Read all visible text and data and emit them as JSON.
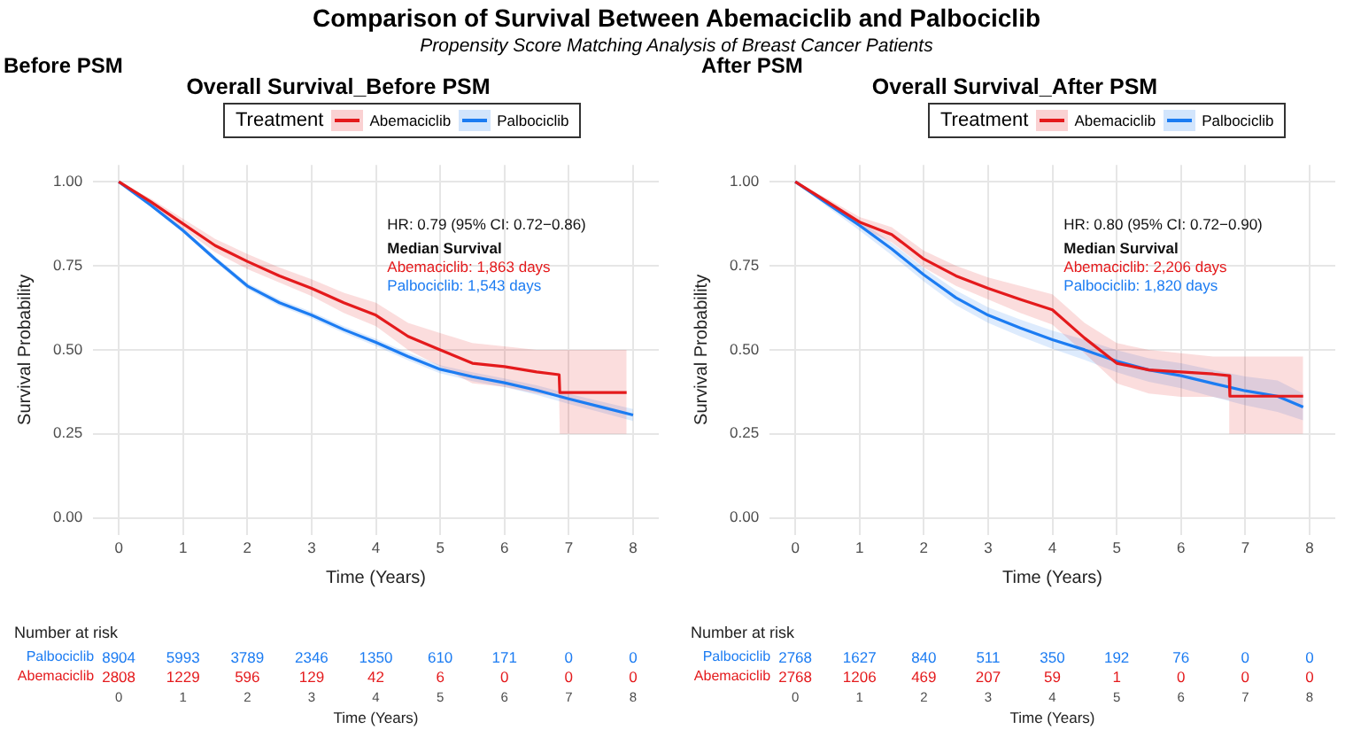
{
  "chart_data": [
    {
      "type": "line",
      "title": "Overall Survival_Before PSM",
      "subtitle": "Before PSM",
      "xlabel": "Time (Years)",
      "ylabel": "Survival Probability",
      "legend_title": "Treatment",
      "legend": "top",
      "grid": true,
      "marker": "none",
      "line_style": "solid",
      "xlim": [
        -0.4,
        8.4
      ],
      "xticks": [
        0,
        1,
        2,
        3,
        4,
        5,
        6,
        7,
        8
      ],
      "ylim": [
        -0.05,
        1.05
      ],
      "yticks": [
        {
          "value": 0,
          "label": "0.00"
        },
        {
          "value": 0.25,
          "label": "0.25"
        },
        {
          "value": 0.5,
          "label": "0.50"
        },
        {
          "value": 0.75,
          "label": "0.75"
        },
        {
          "value": 1,
          "label": "1.00"
        }
      ],
      "series": [
        {
          "name": "Abemaciclib",
          "color": "#e41a1c",
          "x": [
            0,
            0.5,
            1,
            1.5,
            2,
            2.5,
            3,
            3.5,
            4,
            4.5,
            5,
            5.5,
            6,
            6.5,
            6.85,
            6.86,
            7.9
          ],
          "values": [
            1,
            0.94,
            0.875,
            0.81,
            0.763,
            0.72,
            0.683,
            0.64,
            0.603,
            0.54,
            0.5,
            0.46,
            0.45,
            0.434,
            0.426,
            0.373,
            0.373
          ],
          "lower": [
            1,
            0.93,
            0.86,
            0.79,
            0.74,
            0.7,
            0.66,
            0.61,
            0.57,
            0.5,
            0.45,
            0.4,
            0.39,
            0.37,
            0.36,
            0.25,
            0.25
          ],
          "upper": [
            1,
            0.95,
            0.89,
            0.83,
            0.785,
            0.745,
            0.71,
            0.67,
            0.64,
            0.58,
            0.55,
            0.52,
            0.51,
            0.5,
            0.5,
            0.5,
            0.5
          ]
        },
        {
          "name": "Palbociclib",
          "color": "#1c7cf2",
          "x": [
            0,
            0.5,
            1,
            1.5,
            2,
            2.5,
            3,
            3.5,
            4,
            4.5,
            5,
            5.5,
            6,
            6.5,
            7,
            7.5,
            8
          ],
          "values": [
            1,
            0.93,
            0.855,
            0.77,
            0.69,
            0.64,
            0.603,
            0.56,
            0.522,
            0.48,
            0.442,
            0.42,
            0.402,
            0.38,
            0.354,
            0.33,
            0.306
          ],
          "lower": [
            1,
            0.925,
            0.848,
            0.762,
            0.681,
            0.63,
            0.593,
            0.55,
            0.511,
            0.469,
            0.43,
            0.407,
            0.389,
            0.366,
            0.339,
            0.314,
            0.288
          ],
          "upper": [
            1,
            0.935,
            0.862,
            0.778,
            0.699,
            0.65,
            0.613,
            0.57,
            0.533,
            0.491,
            0.454,
            0.433,
            0.415,
            0.394,
            0.369,
            0.346,
            0.324
          ]
        }
      ],
      "annotations": [
        "Comparison of Survival Between Abemaciclib and Palbociclib",
        "Propensity Score Matching Analysis of Breast Cancer Patients",
        "HR: 0.79 (95% CI: 0.72−0.86)",
        "Median Survival",
        "Abemaciclib: 1,863 days",
        "Palbociclib: 1,543 days",
        "Number at risk",
        "Palbociclib",
        "8904",
        "5993",
        "3789",
        "2346",
        "1350",
        "610",
        "171",
        "0",
        "0",
        "Abemaciclib",
        "2808",
        "1229",
        "596",
        "129",
        "42",
        "6",
        "0",
        "0",
        "0",
        "0",
        "1",
        "2",
        "3",
        "4",
        "5",
        "6",
        "7",
        "8",
        "Time (Years)"
      ]
    },
    {
      "type": "line",
      "title": "Overall Survival_After PSM",
      "subtitle": "After PSM",
      "xlabel": "Time (Years)",
      "ylabel": "Survival Probability",
      "legend_title": "Treatment",
      "legend": "top",
      "grid": true,
      "marker": "none",
      "line_style": "solid",
      "xlim": [
        -0.4,
        8.4
      ],
      "xticks": [
        0,
        1,
        2,
        3,
        4,
        5,
        6,
        7,
        8
      ],
      "ylim": [
        -0.05,
        1.05
      ],
      "yticks": [
        {
          "value": 0,
          "label": "0.00"
        },
        {
          "value": 0.25,
          "label": "0.25"
        },
        {
          "value": 0.5,
          "label": "0.50"
        },
        {
          "value": 0.75,
          "label": "0.75"
        },
        {
          "value": 1,
          "label": "1.00"
        }
      ],
      "series": [
        {
          "name": "Abemaciclib",
          "color": "#e41a1c",
          "x": [
            0,
            0.5,
            1,
            1.5,
            2,
            2.5,
            3,
            3.5,
            4,
            4.5,
            5,
            5.5,
            6,
            6.5,
            6.75,
            6.76,
            7.9
          ],
          "values": [
            1,
            0.94,
            0.88,
            0.843,
            0.77,
            0.72,
            0.683,
            0.65,
            0.619,
            0.535,
            0.46,
            0.44,
            0.434,
            0.428,
            0.423,
            0.362,
            0.362
          ],
          "lower": [
            1,
            0.93,
            0.865,
            0.82,
            0.745,
            0.69,
            0.65,
            0.61,
            0.575,
            0.49,
            0.4,
            0.37,
            0.36,
            0.36,
            0.35,
            0.25,
            0.25
          ],
          "upper": [
            1,
            0.95,
            0.895,
            0.865,
            0.795,
            0.75,
            0.715,
            0.69,
            0.665,
            0.58,
            0.52,
            0.5,
            0.49,
            0.48,
            0.48,
            0.48,
            0.48
          ]
        },
        {
          "name": "Palbociclib",
          "color": "#1c7cf2",
          "x": [
            0,
            0.5,
            1,
            1.5,
            2,
            2.5,
            3,
            3.5,
            4,
            4.5,
            5,
            5.5,
            6,
            6.5,
            7,
            7.5,
            7.9
          ],
          "values": [
            1,
            0.935,
            0.87,
            0.8,
            0.723,
            0.655,
            0.603,
            0.565,
            0.53,
            0.5,
            0.466,
            0.44,
            0.423,
            0.4,
            0.378,
            0.362,
            0.33
          ],
          "lower": [
            1,
            0.925,
            0.855,
            0.782,
            0.703,
            0.633,
            0.58,
            0.54,
            0.503,
            0.47,
            0.433,
            0.405,
            0.386,
            0.36,
            0.335,
            0.315,
            0.29
          ],
          "upper": [
            1,
            0.945,
            0.885,
            0.818,
            0.743,
            0.677,
            0.626,
            0.59,
            0.557,
            0.53,
            0.499,
            0.475,
            0.46,
            0.44,
            0.421,
            0.409,
            0.37
          ]
        }
      ],
      "annotations": [
        "HR: 0.80 (95% CI: 0.72−0.90)",
        "Median Survival",
        "Abemaciclib: 2,206 days",
        "Palbociclib: 1,820 days",
        "Number at risk",
        "Palbociclib",
        "2768",
        "1627",
        "840",
        "511",
        "350",
        "192",
        "76",
        "0",
        "0",
        "Abemaciclib",
        "2768",
        "1206",
        "469",
        "207",
        "59",
        "1",
        "0",
        "0",
        "0",
        "0",
        "1",
        "2",
        "3",
        "4",
        "5",
        "6",
        "7",
        "8",
        "Time (Years)"
      ]
    }
  ]
}
